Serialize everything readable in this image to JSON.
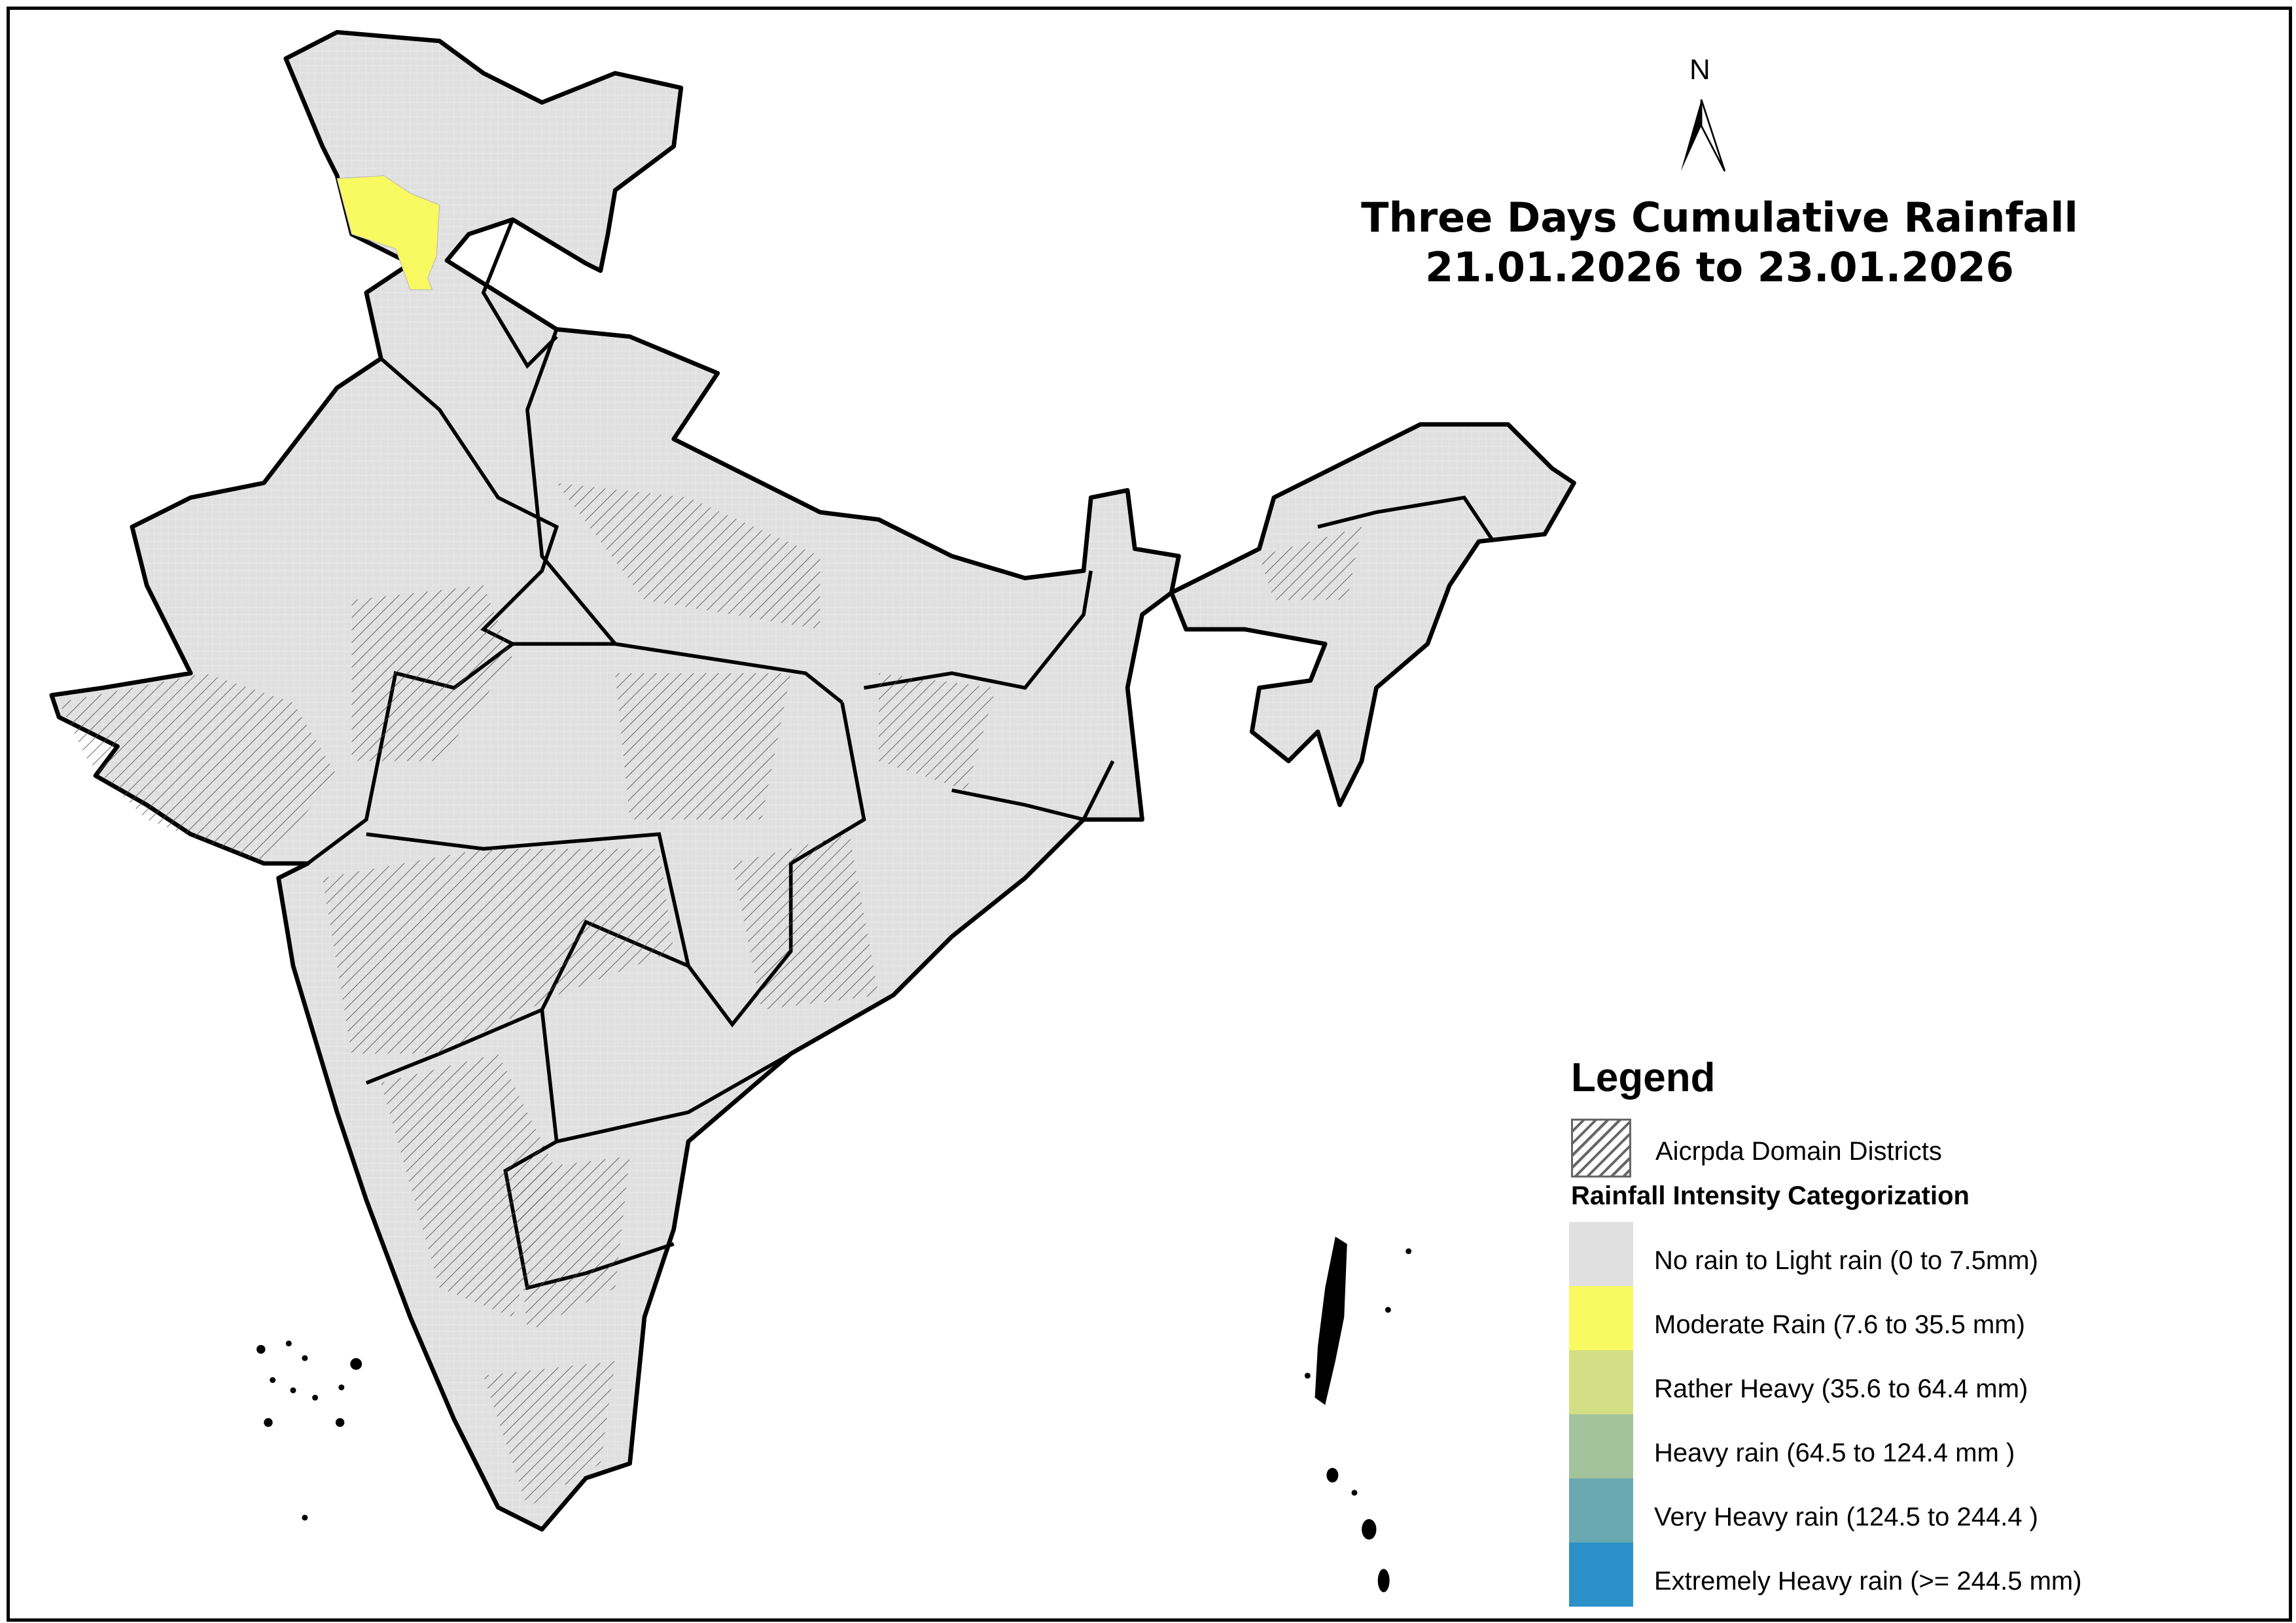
{
  "title": {
    "line1": "Three Days Cumulative Rainfall",
    "line2": "21.01.2026 to 23.01.2026"
  },
  "north_arrow": {
    "label": "N",
    "icon": "north-arrow-icon"
  },
  "map": {
    "region": "India",
    "base_fill": "#e0e0e0",
    "highlighted_category": "Moderate Rain",
    "highlight_color": "#f9f962"
  },
  "legend": {
    "title": "Legend",
    "hatch_label": "Aicrpda Domain Districts",
    "category_title": "Rainfall Intensity Categorization",
    "categories": [
      {
        "label": "No rain to Light rain (0 to 7.5mm)",
        "color": "#e0e0e0"
      },
      {
        "label": "Moderate Rain (7.6 to 35.5 mm)",
        "color": "#f9f962"
      },
      {
        "label": "Rather Heavy (35.6 to 64.4 mm)",
        "color": "#d2df84"
      },
      {
        "label": "Heavy rain (64.5 to 124.4 mm )",
        "color": "#a2c39c"
      },
      {
        "label": "Very Heavy rain (124.5 to 244.4 )",
        "color": "#6aa9b2"
      },
      {
        "label": "Extremely Heavy rain  (>= 244.5 mm)",
        "color": "#2b91c8"
      }
    ]
  }
}
